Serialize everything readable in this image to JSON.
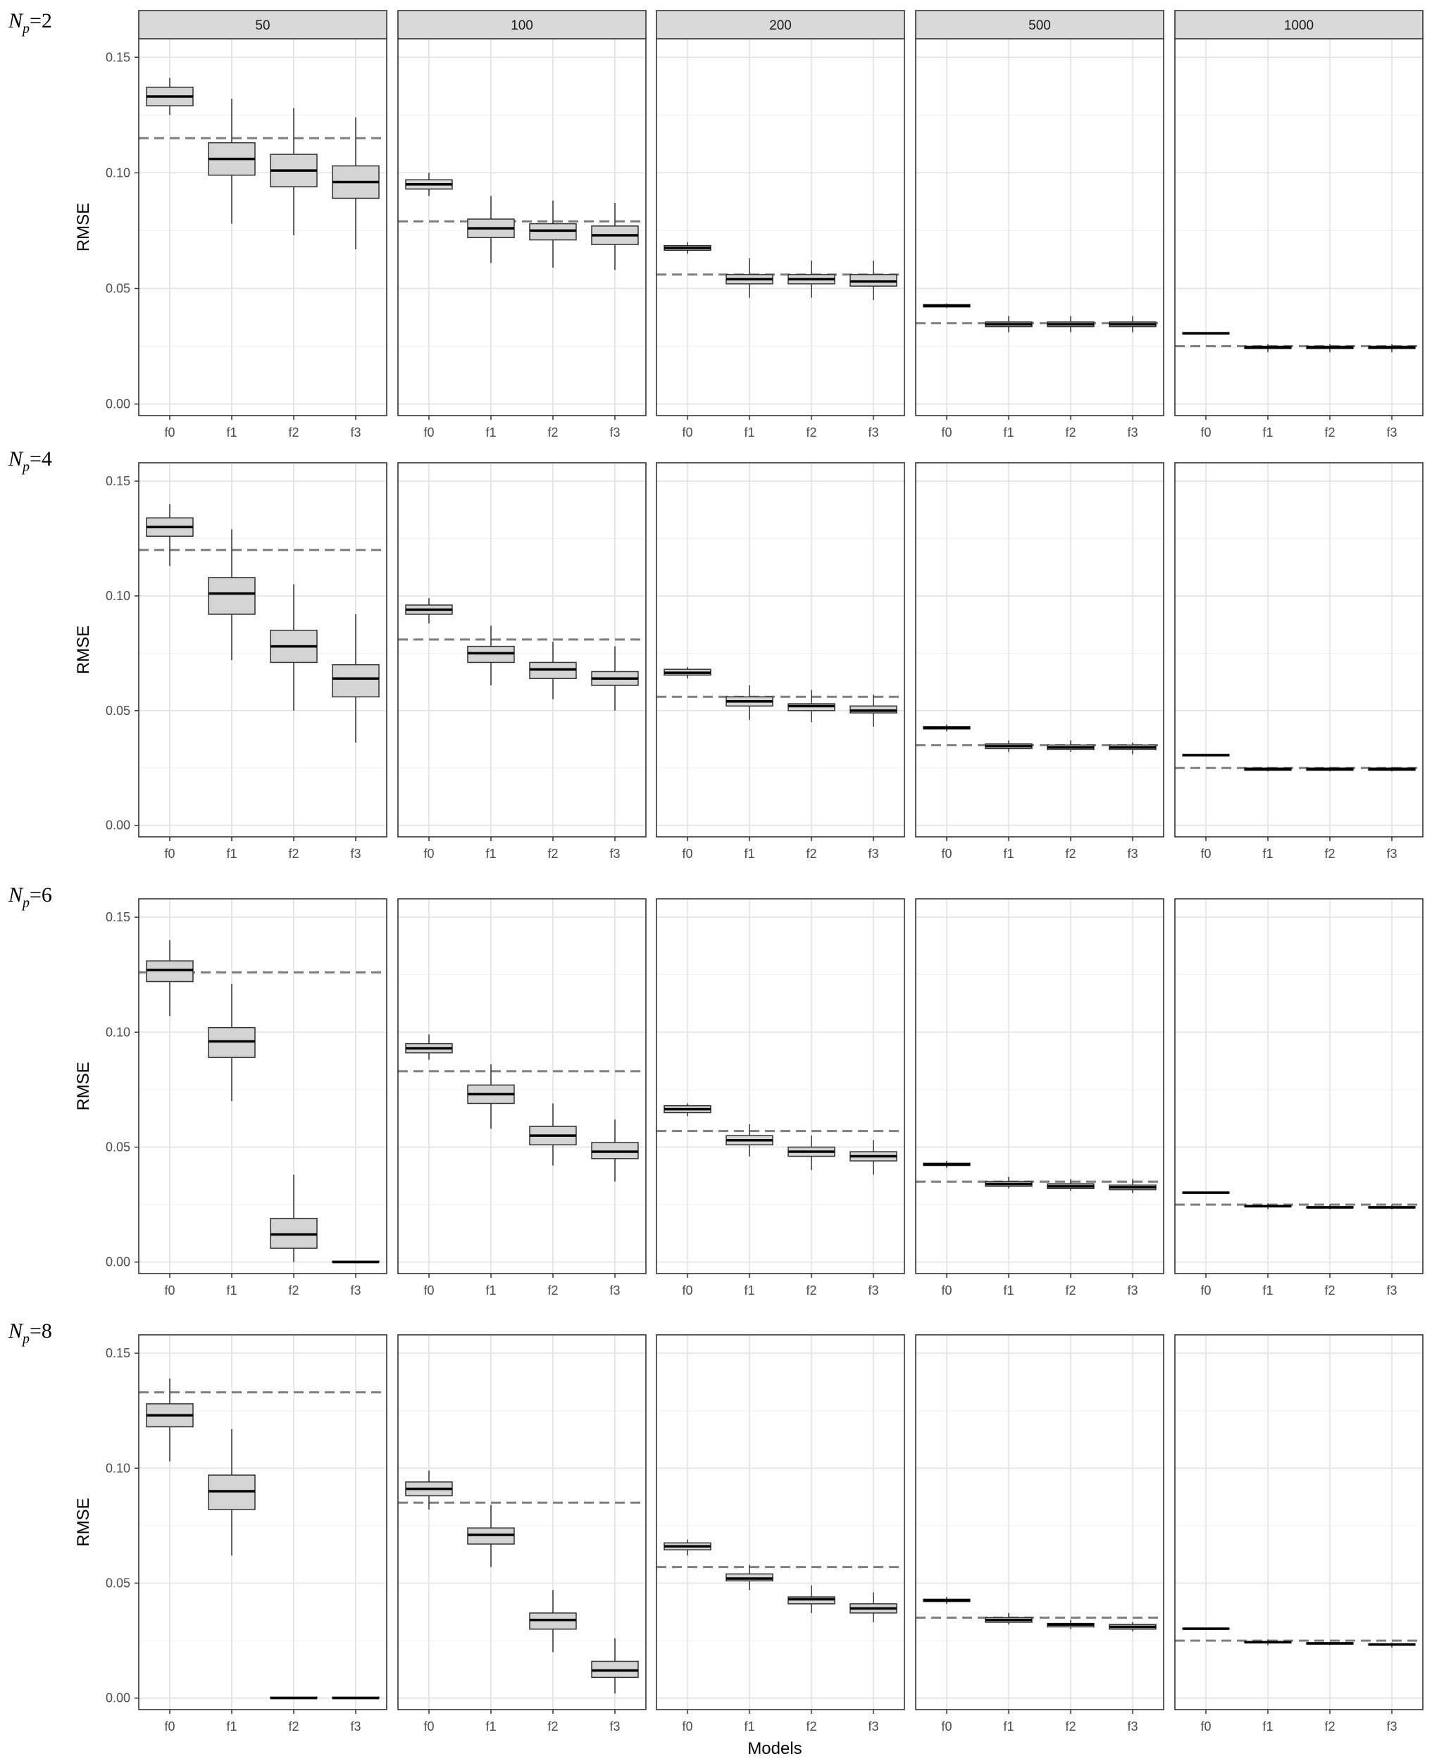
{
  "chart_data": {
    "type": "boxplot",
    "ylabel": "RMSE",
    "xlabel": "Models",
    "ylim": [
      0,
      0.155
    ],
    "yticks": [
      "0.00",
      "0.05",
      "0.10",
      "0.15"
    ],
    "y_tick_values": [
      0,
      0.05,
      0.1,
      0.15
    ],
    "grid": true,
    "categories": [
      "f0",
      "f1",
      "f2",
      "f3"
    ],
    "columns": [
      "50",
      "100",
      "200",
      "500",
      "1000"
    ],
    "rows": [
      {
        "label_prefix": "N",
        "label_sub": "p",
        "label_eq": "=2",
        "panels": [
          {
            "ref": 0.115,
            "boxes": [
              {
                "wlo": 0.125,
                "q1": 0.129,
                "med": 0.133,
                "q3": 0.137,
                "whi": 0.141
              },
              {
                "wlo": 0.078,
                "q1": 0.099,
                "med": 0.106,
                "q3": 0.113,
                "whi": 0.132
              },
              {
                "wlo": 0.073,
                "q1": 0.094,
                "med": 0.101,
                "q3": 0.108,
                "whi": 0.128
              },
              {
                "wlo": 0.067,
                "q1": 0.089,
                "med": 0.096,
                "q3": 0.103,
                "whi": 0.124
              }
            ]
          },
          {
            "ref": 0.079,
            "boxes": [
              {
                "wlo": 0.09,
                "q1": 0.093,
                "med": 0.095,
                "q3": 0.097,
                "whi": 0.1
              },
              {
                "wlo": 0.061,
                "q1": 0.072,
                "med": 0.076,
                "q3": 0.08,
                "whi": 0.09
              },
              {
                "wlo": 0.059,
                "q1": 0.071,
                "med": 0.075,
                "q3": 0.078,
                "whi": 0.088
              },
              {
                "wlo": 0.058,
                "q1": 0.069,
                "med": 0.073,
                "q3": 0.077,
                "whi": 0.087
              }
            ]
          },
          {
            "ref": 0.056,
            "boxes": [
              {
                "wlo": 0.065,
                "q1": 0.0665,
                "med": 0.0675,
                "q3": 0.0685,
                "whi": 0.07
              },
              {
                "wlo": 0.046,
                "q1": 0.052,
                "med": 0.054,
                "q3": 0.056,
                "whi": 0.063
              },
              {
                "wlo": 0.046,
                "q1": 0.052,
                "med": 0.054,
                "q3": 0.056,
                "whi": 0.062
              },
              {
                "wlo": 0.045,
                "q1": 0.051,
                "med": 0.053,
                "q3": 0.056,
                "whi": 0.062
              }
            ]
          },
          {
            "ref": 0.035,
            "boxes": [
              {
                "wlo": 0.0415,
                "q1": 0.042,
                "med": 0.0425,
                "q3": 0.043,
                "whi": 0.0435
              },
              {
                "wlo": 0.031,
                "q1": 0.0335,
                "med": 0.0345,
                "q3": 0.0355,
                "whi": 0.038
              },
              {
                "wlo": 0.031,
                "q1": 0.0335,
                "med": 0.0345,
                "q3": 0.0355,
                "whi": 0.038
              },
              {
                "wlo": 0.031,
                "q1": 0.0335,
                "med": 0.0345,
                "q3": 0.0355,
                "whi": 0.038
              }
            ]
          },
          {
            "ref": 0.025,
            "boxes": [
              {
                "wlo": 0.03,
                "q1": 0.0303,
                "med": 0.0306,
                "q3": 0.0309,
                "whi": 0.031
              },
              {
                "wlo": 0.0225,
                "q1": 0.024,
                "med": 0.0245,
                "q3": 0.025,
                "whi": 0.026
              },
              {
                "wlo": 0.0225,
                "q1": 0.024,
                "med": 0.0245,
                "q3": 0.025,
                "whi": 0.026
              },
              {
                "wlo": 0.0225,
                "q1": 0.024,
                "med": 0.0245,
                "q3": 0.025,
                "whi": 0.026
              }
            ]
          }
        ]
      },
      {
        "label_prefix": "N",
        "label_sub": "p",
        "label_eq": "=4",
        "panels": [
          {
            "ref": 0.12,
            "boxes": [
              {
                "wlo": 0.113,
                "q1": 0.126,
                "med": 0.13,
                "q3": 0.134,
                "whi": 0.14
              },
              {
                "wlo": 0.072,
                "q1": 0.092,
                "med": 0.101,
                "q3": 0.108,
                "whi": 0.129
              },
              {
                "wlo": 0.05,
                "q1": 0.071,
                "med": 0.078,
                "q3": 0.085,
                "whi": 0.105
              },
              {
                "wlo": 0.036,
                "q1": 0.056,
                "med": 0.064,
                "q3": 0.07,
                "whi": 0.092
              }
            ]
          },
          {
            "ref": 0.081,
            "boxes": [
              {
                "wlo": 0.088,
                "q1": 0.092,
                "med": 0.094,
                "q3": 0.096,
                "whi": 0.099
              },
              {
                "wlo": 0.061,
                "q1": 0.071,
                "med": 0.075,
                "q3": 0.078,
                "whi": 0.087
              },
              {
                "wlo": 0.055,
                "q1": 0.064,
                "med": 0.068,
                "q3": 0.071,
                "whi": 0.08
              },
              {
                "wlo": 0.05,
                "q1": 0.061,
                "med": 0.064,
                "q3": 0.067,
                "whi": 0.078
              }
            ]
          },
          {
            "ref": 0.056,
            "boxes": [
              {
                "wlo": 0.064,
                "q1": 0.0655,
                "med": 0.0665,
                "q3": 0.068,
                "whi": 0.069
              },
              {
                "wlo": 0.046,
                "q1": 0.052,
                "med": 0.054,
                "q3": 0.056,
                "whi": 0.061
              },
              {
                "wlo": 0.045,
                "q1": 0.05,
                "med": 0.052,
                "q3": 0.053,
                "whi": 0.059
              },
              {
                "wlo": 0.043,
                "q1": 0.049,
                "med": 0.05,
                "q3": 0.052,
                "whi": 0.057
              }
            ]
          },
          {
            "ref": 0.035,
            "boxes": [
              {
                "wlo": 0.041,
                "q1": 0.042,
                "med": 0.0425,
                "q3": 0.043,
                "whi": 0.044
              },
              {
                "wlo": 0.032,
                "q1": 0.0335,
                "med": 0.0345,
                "q3": 0.0355,
                "whi": 0.037
              },
              {
                "wlo": 0.032,
                "q1": 0.033,
                "med": 0.034,
                "q3": 0.035,
                "whi": 0.037
              },
              {
                "wlo": 0.031,
                "q1": 0.033,
                "med": 0.034,
                "q3": 0.035,
                "whi": 0.036
              }
            ]
          },
          {
            "ref": 0.025,
            "boxes": [
              {
                "wlo": 0.03,
                "q1": 0.0303,
                "med": 0.0306,
                "q3": 0.0309,
                "whi": 0.031
              },
              {
                "wlo": 0.0235,
                "q1": 0.024,
                "med": 0.0245,
                "q3": 0.025,
                "whi": 0.0255
              },
              {
                "wlo": 0.0235,
                "q1": 0.024,
                "med": 0.0245,
                "q3": 0.025,
                "whi": 0.0255
              },
              {
                "wlo": 0.0235,
                "q1": 0.024,
                "med": 0.0245,
                "q3": 0.025,
                "whi": 0.0255
              }
            ]
          }
        ]
      },
      {
        "label_prefix": "N",
        "label_sub": "p",
        "label_eq": "=6",
        "panels": [
          {
            "ref": 0.126,
            "boxes": [
              {
                "wlo": 0.107,
                "q1": 0.122,
                "med": 0.127,
                "q3": 0.131,
                "whi": 0.14
              },
              {
                "wlo": 0.07,
                "q1": 0.089,
                "med": 0.096,
                "q3": 0.102,
                "whi": 0.121
              },
              {
                "wlo": 0.0,
                "q1": 0.006,
                "med": 0.012,
                "q3": 0.019,
                "whi": 0.038
              },
              {
                "wlo": 0.0,
                "q1": 0.0,
                "med": 0.0,
                "q3": 0.0004,
                "whi": 0.0004
              }
            ]
          },
          {
            "ref": 0.083,
            "boxes": [
              {
                "wlo": 0.088,
                "q1": 0.091,
                "med": 0.093,
                "q3": 0.095,
                "whi": 0.099
              },
              {
                "wlo": 0.058,
                "q1": 0.069,
                "med": 0.073,
                "q3": 0.077,
                "whi": 0.086
              },
              {
                "wlo": 0.042,
                "q1": 0.051,
                "med": 0.055,
                "q3": 0.059,
                "whi": 0.069
              },
              {
                "wlo": 0.035,
                "q1": 0.045,
                "med": 0.048,
                "q3": 0.052,
                "whi": 0.062
              }
            ]
          },
          {
            "ref": 0.057,
            "boxes": [
              {
                "wlo": 0.0635,
                "q1": 0.065,
                "med": 0.0665,
                "q3": 0.068,
                "whi": 0.069
              },
              {
                "wlo": 0.046,
                "q1": 0.051,
                "med": 0.053,
                "q3": 0.055,
                "whi": 0.06
              },
              {
                "wlo": 0.04,
                "q1": 0.046,
                "med": 0.048,
                "q3": 0.05,
                "whi": 0.055
              },
              {
                "wlo": 0.038,
                "q1": 0.044,
                "med": 0.046,
                "q3": 0.048,
                "whi": 0.053
              }
            ]
          },
          {
            "ref": 0.035,
            "boxes": [
              {
                "wlo": 0.041,
                "q1": 0.042,
                "med": 0.0425,
                "q3": 0.043,
                "whi": 0.044
              },
              {
                "wlo": 0.032,
                "q1": 0.033,
                "med": 0.034,
                "q3": 0.035,
                "whi": 0.037
              },
              {
                "wlo": 0.031,
                "q1": 0.032,
                "med": 0.033,
                "q3": 0.034,
                "whi": 0.036
              },
              {
                "wlo": 0.03,
                "q1": 0.0315,
                "med": 0.0325,
                "q3": 0.0335,
                "whi": 0.036
              }
            ]
          },
          {
            "ref": 0.025,
            "boxes": [
              {
                "wlo": 0.0298,
                "q1": 0.03,
                "med": 0.0302,
                "q3": 0.0304,
                "whi": 0.0306
              },
              {
                "wlo": 0.023,
                "q1": 0.024,
                "med": 0.0243,
                "q3": 0.0246,
                "whi": 0.0255
              },
              {
                "wlo": 0.023,
                "q1": 0.0235,
                "med": 0.0238,
                "q3": 0.0241,
                "whi": 0.025
              },
              {
                "wlo": 0.023,
                "q1": 0.0235,
                "med": 0.0238,
                "q3": 0.0241,
                "whi": 0.025
              }
            ]
          }
        ]
      },
      {
        "label_prefix": "N",
        "label_sub": "p",
        "label_eq": "=8",
        "panels": [
          {
            "ref": 0.133,
            "boxes": [
              {
                "wlo": 0.103,
                "q1": 0.118,
                "med": 0.123,
                "q3": 0.128,
                "whi": 0.139
              },
              {
                "wlo": 0.062,
                "q1": 0.082,
                "med": 0.09,
                "q3": 0.097,
                "whi": 0.117
              },
              {
                "wlo": 0.0,
                "q1": 0.0,
                "med": 0.0,
                "q3": 0.0004,
                "whi": 0.0004
              },
              {
                "wlo": 0.0,
                "q1": 0.0,
                "med": 0.0,
                "q3": 0.0004,
                "whi": 0.0004
              }
            ]
          },
          {
            "ref": 0.085,
            "boxes": [
              {
                "wlo": 0.082,
                "q1": 0.088,
                "med": 0.091,
                "q3": 0.094,
                "whi": 0.099
              },
              {
                "wlo": 0.057,
                "q1": 0.067,
                "med": 0.071,
                "q3": 0.074,
                "whi": 0.084
              },
              {
                "wlo": 0.02,
                "q1": 0.03,
                "med": 0.034,
                "q3": 0.037,
                "whi": 0.047
              },
              {
                "wlo": 0.002,
                "q1": 0.009,
                "med": 0.012,
                "q3": 0.016,
                "whi": 0.026
              }
            ]
          },
          {
            "ref": 0.057,
            "boxes": [
              {
                "wlo": 0.062,
                "q1": 0.0645,
                "med": 0.066,
                "q3": 0.0675,
                "whi": 0.069
              },
              {
                "wlo": 0.047,
                "q1": 0.051,
                "med": 0.052,
                "q3": 0.054,
                "whi": 0.058
              },
              {
                "wlo": 0.037,
                "q1": 0.041,
                "med": 0.043,
                "q3": 0.044,
                "whi": 0.049
              },
              {
                "wlo": 0.033,
                "q1": 0.037,
                "med": 0.039,
                "q3": 0.041,
                "whi": 0.046
              }
            ]
          },
          {
            "ref": 0.035,
            "boxes": [
              {
                "wlo": 0.041,
                "q1": 0.042,
                "med": 0.0425,
                "q3": 0.043,
                "whi": 0.044
              },
              {
                "wlo": 0.032,
                "q1": 0.033,
                "med": 0.034,
                "q3": 0.035,
                "whi": 0.037
              },
              {
                "wlo": 0.03,
                "q1": 0.031,
                "med": 0.032,
                "q3": 0.0325,
                "whi": 0.034
              },
              {
                "wlo": 0.029,
                "q1": 0.03,
                "med": 0.031,
                "q3": 0.032,
                "whi": 0.033
              }
            ]
          },
          {
            "ref": 0.025,
            "boxes": [
              {
                "wlo": 0.0298,
                "q1": 0.03,
                "med": 0.0302,
                "q3": 0.0304,
                "whi": 0.0306
              },
              {
                "wlo": 0.023,
                "q1": 0.024,
                "med": 0.0243,
                "q3": 0.0246,
                "whi": 0.0255
              },
              {
                "wlo": 0.023,
                "q1": 0.0235,
                "med": 0.0238,
                "q3": 0.0241,
                "whi": 0.0245
              },
              {
                "wlo": 0.022,
                "q1": 0.023,
                "med": 0.0233,
                "q3": 0.0236,
                "whi": 0.024
              }
            ]
          }
        ]
      }
    ]
  }
}
